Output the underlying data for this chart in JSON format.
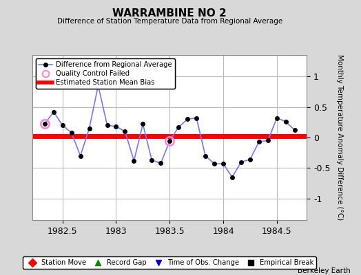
{
  "title": "WARRAMBINE NO 2",
  "subtitle": "Difference of Station Temperature Data from Regional Average",
  "ylabel": "Monthly Temperature Anomaly Difference (°C)",
  "credit": "Berkeley Earth",
  "xlim": [
    1982.22,
    1984.78
  ],
  "ylim": [
    -1.35,
    1.35
  ],
  "yticks": [
    -1,
    -0.5,
    0,
    0.5,
    1
  ],
  "xticks": [
    1982.5,
    1983.0,
    1983.5,
    1984.0,
    1984.5
  ],
  "xtick_labels": [
    "1982.5",
    "1983",
    "1983.5",
    "1984",
    "1984.5"
  ],
  "mean_bias": 0.02,
  "line_color": "#7777ff",
  "dot_color": "#000000",
  "bias_color": "#ff0000",
  "qc_color": "#ff88cc",
  "bg_color": "#d8d8d8",
  "plot_bg": "#ffffff",
  "grid_color": "#bbbbbb",
  "x_data": [
    1982.333,
    1982.417,
    1982.5,
    1982.583,
    1982.667,
    1982.75,
    1982.833,
    1982.917,
    1983.0,
    1983.083,
    1983.167,
    1983.25,
    1983.333,
    1983.417,
    1983.5,
    1983.583,
    1983.667,
    1983.75,
    1983.833,
    1983.917,
    1984.0,
    1984.083,
    1984.167,
    1984.25,
    1984.333,
    1984.417,
    1984.5,
    1984.583,
    1984.667
  ],
  "y_data": [
    0.22,
    0.42,
    0.2,
    0.08,
    -0.3,
    0.15,
    0.85,
    0.2,
    0.18,
    0.1,
    -0.38,
    0.22,
    -0.37,
    -0.42,
    -0.06,
    0.17,
    0.3,
    0.32,
    -0.3,
    -0.43,
    -0.43,
    -0.65,
    -0.4,
    -0.36,
    -0.07,
    -0.05,
    0.32,
    0.26,
    0.12
  ],
  "qc_failed_indices": [
    0,
    14
  ],
  "legend1_labels": [
    "Difference from Regional Average",
    "Quality Control Failed",
    "Estimated Station Mean Bias"
  ],
  "legend2_labels": [
    "Station Move",
    "Record Gap",
    "Time of Obs. Change",
    "Empirical Break"
  ],
  "legend2_colors": [
    "#ff0000",
    "#008800",
    "#0000cc",
    "#000000"
  ],
  "legend2_markers": [
    "D",
    "^",
    "v",
    "s"
  ]
}
